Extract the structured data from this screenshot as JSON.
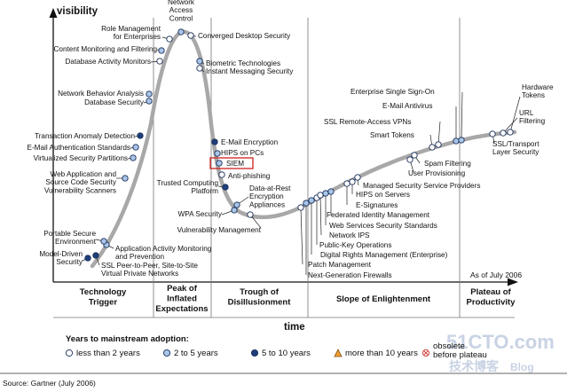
{
  "chart_data": {
    "type": "hype-cycle",
    "ylabel": "visibility",
    "xlabel": "time",
    "as_of": "As of July 2006",
    "source": "Source: Gartner (July 2006)",
    "phases": [
      {
        "name": "Technology Trigger",
        "lines": [
          "Technology",
          "Trigger"
        ]
      },
      {
        "name": "Peak of Inflated Expectations",
        "lines": [
          "Peak of",
          "Inflated",
          "Expectations"
        ]
      },
      {
        "name": "Trough of Disillusionment",
        "lines": [
          "Trough of",
          "Disillusionment"
        ]
      },
      {
        "name": "Slope of Enlightenment",
        "lines": [
          "Slope of Enlightenment"
        ]
      },
      {
        "name": "Plateau of Productivity",
        "lines": [
          "Plateau of",
          "Productivity"
        ]
      }
    ],
    "legend": {
      "title": "Years to mainstream adoption:",
      "items": [
        {
          "key": "lt2",
          "label": "less than 2 years",
          "marker": "circle",
          "color": "#ffffff"
        },
        {
          "key": "2to5",
          "label": "2 to 5 years",
          "marker": "circle",
          "color": "#a9c6e8"
        },
        {
          "key": "5to10",
          "label": "5 to 10 years",
          "marker": "circle",
          "color": "#1f3f7a"
        },
        {
          "key": "gt10",
          "label": "more than 10 years",
          "marker": "triangle",
          "color": "#f0a030"
        },
        {
          "key": "obs",
          "label": "obsolete before plateau",
          "lines": [
            "obsolete",
            "before plateau"
          ],
          "marker": "x-circle",
          "color": "#d04040"
        }
      ]
    },
    "technologies": [
      {
        "name": "Model-Driven Security",
        "lines": [
          "Model-Driven",
          "Security"
        ],
        "category": "5to10"
      },
      {
        "name": "SSL Peer-to-Peer, Site-to-Site Virtual Private Networks",
        "lines": [
          "SSL Peer-to-Peer, Site-to-Site",
          "Virtual Private Networks"
        ],
        "category": "5to10"
      },
      {
        "name": "Application Activity Monitoring and Prevention",
        "lines": [
          "Application Activity Monitoring",
          "and Prevention"
        ],
        "category": "2to5"
      },
      {
        "name": "Portable Secure Environment",
        "lines": [
          "Portable Secure",
          "Environment"
        ],
        "category": "2to5"
      },
      {
        "name": "Web Application and Source Code Security Vulnerability Scanners",
        "lines": [
          "Web Application and",
          "Source Code Security",
          "Vulnerability Scanners"
        ],
        "category": "2to5"
      },
      {
        "name": "Virtualized Security Partitions",
        "lines": [
          "Virtualized Security Partitions"
        ],
        "category": "2to5"
      },
      {
        "name": "E-Mail Authentication Standards",
        "lines": [
          "E-Mail Authentication Standards"
        ],
        "category": "2to5"
      },
      {
        "name": "Transaction Anomaly Detection",
        "lines": [
          "Transaction Anomaly Detection"
        ],
        "category": "5to10"
      },
      {
        "name": "Network Behavior Analysis",
        "lines": [
          "Network Behavior Analysis"
        ],
        "category": "2to5"
      },
      {
        "name": "Database Security",
        "lines": [
          "Database Security"
        ],
        "category": "2to5"
      },
      {
        "name": "Database Activity Monitors",
        "lines": [
          "Database Activity Monitors"
        ],
        "category": "lt2"
      },
      {
        "name": "Content Monitoring and Filtering",
        "lines": [
          "Content Monitoring and Filtering"
        ],
        "category": "2to5"
      },
      {
        "name": "Role Management for Enterprises",
        "lines": [
          "Role Management",
          "for Enterprises"
        ],
        "category": "lt2"
      },
      {
        "name": "Network Access Control",
        "lines": [
          "Network",
          "Access",
          "Control"
        ],
        "category": "2to5"
      },
      {
        "name": "Converged Desktop Security",
        "lines": [
          "Converged Desktop Security"
        ],
        "category": "lt2"
      },
      {
        "name": "Biometric Technologies",
        "lines": [
          "Biometric Technologies"
        ],
        "category": "2to5"
      },
      {
        "name": "Instant Messaging Security",
        "lines": [
          "Instant Messaging Security"
        ],
        "category": "lt2"
      },
      {
        "name": "E-Mail Encryption",
        "lines": [
          "E-Mail Encryption"
        ],
        "category": "5to10"
      },
      {
        "name": "HIPS on PCs",
        "lines": [
          "HIPS on PCs"
        ],
        "category": "2to5"
      },
      {
        "name": "SIEM",
        "lines": [
          "SIEM"
        ],
        "category": "2to5",
        "highlight": true
      },
      {
        "name": "Anti-phishing",
        "lines": [
          "Anti-phishing"
        ],
        "category": "lt2"
      },
      {
        "name": "Trusted Computing Platform",
        "lines": [
          "Trusted Computing",
          "Platform"
        ],
        "category": "5to10"
      },
      {
        "name": "Data-at-Rest Encryption Appliances",
        "lines": [
          "Data-at-Rest",
          "Encryption",
          "Appliances"
        ],
        "category": "2to5"
      },
      {
        "name": "WPA Security",
        "lines": [
          "WPA Security"
        ],
        "category": "2to5"
      },
      {
        "name": "Vulnerability Management",
        "lines": [
          "Vulnerability Management"
        ],
        "category": "lt2"
      },
      {
        "name": "Next-Generation Firewalls",
        "lines": [
          "Next-Generation Firewalls"
        ],
        "category": "2to5"
      },
      {
        "name": "Patch Management",
        "lines": [
          "Patch Management"
        ],
        "category": "lt2"
      },
      {
        "name": "Digital Rights Management (Enterprise)",
        "lines": [
          "Digital Rights Management (Enterprise)"
        ],
        "category": "2to5"
      },
      {
        "name": "Public-Key Operations",
        "lines": [
          "Public-Key Operations"
        ],
        "category": "lt2"
      },
      {
        "name": "Network IPS",
        "lines": [
          "Network IPS"
        ],
        "category": "lt2"
      },
      {
        "name": "Web Services Security Standards",
        "lines": [
          "Web Services Security Standards"
        ],
        "category": "2to5"
      },
      {
        "name": "Federated Identity Management",
        "lines": [
          "Federated Identity Management"
        ],
        "category": "2to5"
      },
      {
        "name": "E-Signatures",
        "lines": [
          "E-Signatures"
        ],
        "category": "lt2"
      },
      {
        "name": "HIPS on Servers",
        "lines": [
          "HIPS on Servers"
        ],
        "category": "lt2"
      },
      {
        "name": "Managed Security Service Providers",
        "lines": [
          "Managed Security Service Providers"
        ],
        "category": "lt2"
      },
      {
        "name": "User Provisioning",
        "lines": [
          "User Provisioning"
        ],
        "category": "lt2"
      },
      {
        "name": "Spam Filtering",
        "lines": [
          "Spam Filtering"
        ],
        "category": "lt2"
      },
      {
        "name": "Smart Tokens",
        "lines": [
          "Smart Tokens"
        ],
        "category": "lt2"
      },
      {
        "name": "SSL Remote-Access VPNs",
        "lines": [
          "SSL Remote-Access VPNs"
        ],
        "category": "lt2"
      },
      {
        "name": "E-Mail Antivirus",
        "lines": [
          "E-Mail Antivirus"
        ],
        "category": "2to5"
      },
      {
        "name": "Enterprise Single Sign-On",
        "lines": [
          "Enterprise Single Sign-On"
        ],
        "category": "2to5"
      },
      {
        "name": "SSL/Transport Layer Security",
        "lines": [
          "SSL/Transport",
          "Layer Security"
        ],
        "category": "lt2"
      },
      {
        "name": "URL Filtering",
        "lines": [
          "URL",
          "Filtering"
        ],
        "category": "lt2"
      },
      {
        "name": "Hardware Tokens",
        "lines": [
          "Hardware",
          "Tokens"
        ],
        "category": "lt2"
      }
    ]
  },
  "watermark": {
    "line1": "51CTO.com",
    "line2": "技术博客",
    "line3": "Blog"
  }
}
